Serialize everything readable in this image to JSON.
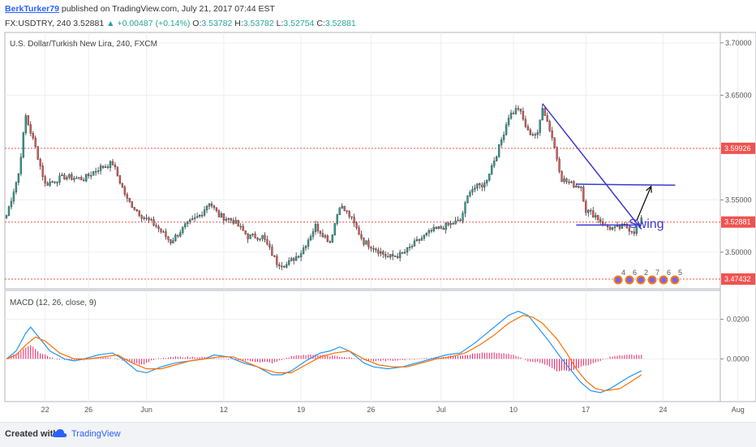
{
  "header": {
    "author": "BerkTurker79",
    "published": "published on TradingView.com, July 21, 2017 07:44 EST",
    "symbol": "FX:USDTRY, 240",
    "price": "3.52881",
    "change": "▲ +0.00487 (+0.14%)",
    "o_label": "O:",
    "o_value": "3.53782",
    "h_label": "H:",
    "h_value": "3.53782",
    "l_label": "L:",
    "l_value": "3.52754",
    "c_label": "C:",
    "c_value": "3.52881"
  },
  "price_pane": {
    "title": "U.S. Dollar/Turkish New Lira, 240, FXCM",
    "annotation": "Swing",
    "badges": [
      "4",
      "6",
      "2",
      "7",
      "6",
      "5"
    ]
  },
  "macd_pane": {
    "title": "MACD (12, 26, close, 9)"
  },
  "footer": {
    "created": "Created with",
    "brand": "TradingView"
  },
  "colors": {
    "up": "#26a69a",
    "down": "#ef5350",
    "macd_line": "#2196f3",
    "signal_line": "#ff6d00",
    "hist": "#e91e63",
    "trend": "#3a3acd",
    "level": "#ef5350"
  },
  "chart_data": [
    {
      "type": "candlestick",
      "title": "U.S. Dollar/Turkish New Lira, 240, FXCM",
      "y_ticks": [
        "3.70000",
        "3.65000",
        "3.55000",
        "3.50000"
      ],
      "ylim": [
        3.465,
        3.71
      ],
      "x_ticks": [
        "22",
        "26",
        "Jun",
        "12",
        "19",
        "26",
        "Jul",
        "10",
        "17",
        "24",
        "Aug"
      ],
      "price_labels": [
        {
          "value": 3.59926,
          "label": "3.59926"
        },
        {
          "value": 3.52881,
          "label": "3.52881"
        },
        {
          "value": 3.47432,
          "label": "3.47432"
        }
      ],
      "horizontal_levels": [
        3.59926,
        3.52881,
        3.47432
      ],
      "close_anchors": [
        [
          0,
          3.535
        ],
        [
          5,
          3.575
        ],
        [
          8,
          3.63
        ],
        [
          12,
          3.6
        ],
        [
          16,
          3.565
        ],
        [
          24,
          3.572
        ],
        [
          32,
          3.57
        ],
        [
          38,
          3.58
        ],
        [
          44,
          3.585
        ],
        [
          50,
          3.55
        ],
        [
          56,
          3.535
        ],
        [
          62,
          3.525
        ],
        [
          68,
          3.51
        ],
        [
          74,
          3.525
        ],
        [
          80,
          3.535
        ],
        [
          84,
          3.548
        ],
        [
          88,
          3.535
        ],
        [
          94,
          3.53
        ],
        [
          100,
          3.515
        ],
        [
          106,
          3.515
        ],
        [
          112,
          3.49
        ],
        [
          116,
          3.488
        ],
        [
          122,
          3.5
        ],
        [
          128,
          3.525
        ],
        [
          134,
          3.51
        ],
        [
          138,
          3.545
        ],
        [
          142,
          3.535
        ],
        [
          148,
          3.51
        ],
        [
          152,
          3.505
        ],
        [
          158,
          3.495
        ],
        [
          164,
          3.498
        ],
        [
          170,
          3.51
        ],
        [
          176,
          3.52
        ],
        [
          182,
          3.525
        ],
        [
          188,
          3.53
        ],
        [
          192,
          3.56
        ],
        [
          198,
          3.565
        ],
        [
          204,
          3.6
        ],
        [
          208,
          3.63
        ],
        [
          212,
          3.638
        ],
        [
          216,
          3.615
        ],
        [
          220,
          3.612
        ],
        [
          222,
          3.64
        ],
        [
          226,
          3.61
        ],
        [
          230,
          3.57
        ],
        [
          234,
          3.565
        ],
        [
          238,
          3.563
        ],
        [
          240,
          3.54
        ],
        [
          244,
          3.535
        ],
        [
          248,
          3.525
        ],
        [
          252,
          3.522
        ],
        [
          256,
          3.525
        ],
        [
          260,
          3.52
        ],
        [
          263,
          3.53
        ]
      ],
      "trendlines": [
        {
          "from": [
            222,
            3.642
          ],
          "to": [
            263,
            3.522
          ]
        },
        {
          "from": [
            236,
            3.565
          ],
          "to": [
            277,
            3.564
          ]
        },
        {
          "from": [
            236,
            3.526
          ],
          "to": [
            263,
            3.526
          ]
        }
      ],
      "arrow": {
        "from": [
          261,
          3.53
        ],
        "to": [
          267,
          3.563
        ]
      }
    },
    {
      "type": "line",
      "title": "MACD (12, 26, close, 9)",
      "y_ticks": [
        "0.0200",
        "0.0000"
      ],
      "ylim": [
        -0.0215,
        0.0345
      ],
      "series": [
        {
          "role": "macd",
          "points": [
            [
              0,
              0.0
            ],
            [
              4,
              0.004
            ],
            [
              8,
              0.013
            ],
            [
              10,
              0.016
            ],
            [
              14,
              0.01
            ],
            [
              18,
              0.004
            ],
            [
              24,
              0.0
            ],
            [
              28,
              -0.001
            ],
            [
              32,
              0.0
            ],
            [
              38,
              0.002
            ],
            [
              44,
              0.003
            ],
            [
              48,
              0.0
            ],
            [
              54,
              -0.006
            ],
            [
              58,
              -0.007
            ],
            [
              64,
              -0.004
            ],
            [
              70,
              -0.002
            ],
            [
              76,
              -0.001
            ],
            [
              82,
              0.0
            ],
            [
              86,
              0.002
            ],
            [
              92,
              0.001
            ],
            [
              98,
              -0.002
            ],
            [
              104,
              -0.004
            ],
            [
              110,
              -0.008
            ],
            [
              114,
              -0.008
            ],
            [
              118,
              -0.006
            ],
            [
              124,
              -0.001
            ],
            [
              130,
              0.003
            ],
            [
              134,
              0.004
            ],
            [
              138,
              0.006
            ],
            [
              142,
              0.004
            ],
            [
              148,
              -0.002
            ],
            [
              152,
              -0.004
            ],
            [
              158,
              -0.005
            ],
            [
              164,
              -0.004
            ],
            [
              170,
              -0.002
            ],
            [
              176,
              0.0
            ],
            [
              182,
              0.002
            ],
            [
              188,
              0.003
            ],
            [
              194,
              0.008
            ],
            [
              198,
              0.012
            ],
            [
              204,
              0.018
            ],
            [
              208,
              0.022
            ],
            [
              212,
              0.024
            ],
            [
              216,
              0.022
            ],
            [
              220,
              0.016
            ],
            [
              224,
              0.01
            ],
            [
              230,
              0.0
            ],
            [
              234,
              -0.006
            ],
            [
              238,
              -0.012
            ],
            [
              242,
              -0.016
            ],
            [
              246,
              -0.017
            ],
            [
              250,
              -0.015
            ],
            [
              254,
              -0.012
            ],
            [
              258,
              -0.009
            ],
            [
              263,
              -0.006
            ]
          ]
        },
        {
          "role": "signal",
          "points": [
            [
              0,
              0.0
            ],
            [
              4,
              0.002
            ],
            [
              8,
              0.007
            ],
            [
              12,
              0.011
            ],
            [
              16,
              0.009
            ],
            [
              22,
              0.003
            ],
            [
              28,
              0.0
            ],
            [
              34,
              0.0
            ],
            [
              40,
              0.001
            ],
            [
              46,
              0.002
            ],
            [
              52,
              -0.002
            ],
            [
              58,
              -0.005
            ],
            [
              64,
              -0.005
            ],
            [
              70,
              -0.003
            ],
            [
              76,
              -0.001
            ],
            [
              82,
              0.0
            ],
            [
              88,
              0.001
            ],
            [
              94,
              0.001
            ],
            [
              100,
              -0.002
            ],
            [
              106,
              -0.005
            ],
            [
              112,
              -0.007
            ],
            [
              118,
              -0.007
            ],
            [
              124,
              -0.003
            ],
            [
              130,
              0.001
            ],
            [
              136,
              0.003
            ],
            [
              142,
              0.004
            ],
            [
              148,
              0.0
            ],
            [
              154,
              -0.003
            ],
            [
              160,
              -0.004
            ],
            [
              166,
              -0.004
            ],
            [
              172,
              -0.002
            ],
            [
              178,
              0.0
            ],
            [
              184,
              0.001
            ],
            [
              190,
              0.003
            ],
            [
              196,
              0.007
            ],
            [
              202,
              0.012
            ],
            [
              208,
              0.018
            ],
            [
              214,
              0.022
            ],
            [
              218,
              0.021
            ],
            [
              222,
              0.018
            ],
            [
              228,
              0.01
            ],
            [
              232,
              0.003
            ],
            [
              236,
              -0.005
            ],
            [
              240,
              -0.011
            ],
            [
              244,
              -0.015
            ],
            [
              248,
              -0.016
            ],
            [
              254,
              -0.015
            ],
            [
              258,
              -0.012
            ],
            [
              263,
              -0.008
            ]
          ]
        }
      ],
      "histogram_anchors": [
        [
          0,
          0.0
        ],
        [
          6,
          0.004
        ],
        [
          10,
          0.007
        ],
        [
          14,
          0.003
        ],
        [
          20,
          0.0
        ],
        [
          30,
          -0.001
        ],
        [
          40,
          0.001
        ],
        [
          50,
          -0.001
        ],
        [
          56,
          -0.003
        ],
        [
          62,
          0.0
        ],
        [
          70,
          0.001
        ],
        [
          80,
          0.001
        ],
        [
          90,
          0.0
        ],
        [
          100,
          -0.001
        ],
        [
          110,
          -0.002
        ],
        [
          120,
          0.002
        ],
        [
          130,
          0.002
        ],
        [
          140,
          0.001
        ],
        [
          150,
          -0.001
        ],
        [
          160,
          -0.001
        ],
        [
          170,
          0.0
        ],
        [
          180,
          0.001
        ],
        [
          190,
          0.002
        ],
        [
          196,
          0.003
        ],
        [
          204,
          0.003
        ],
        [
          210,
          0.002
        ],
        [
          216,
          -0.001
        ],
        [
          222,
          -0.002
        ],
        [
          228,
          -0.006
        ],
        [
          234,
          -0.006
        ],
        [
          238,
          -0.004
        ],
        [
          244,
          -0.002
        ],
        [
          250,
          0.001
        ],
        [
          256,
          0.002
        ],
        [
          263,
          0.002
        ]
      ]
    }
  ]
}
